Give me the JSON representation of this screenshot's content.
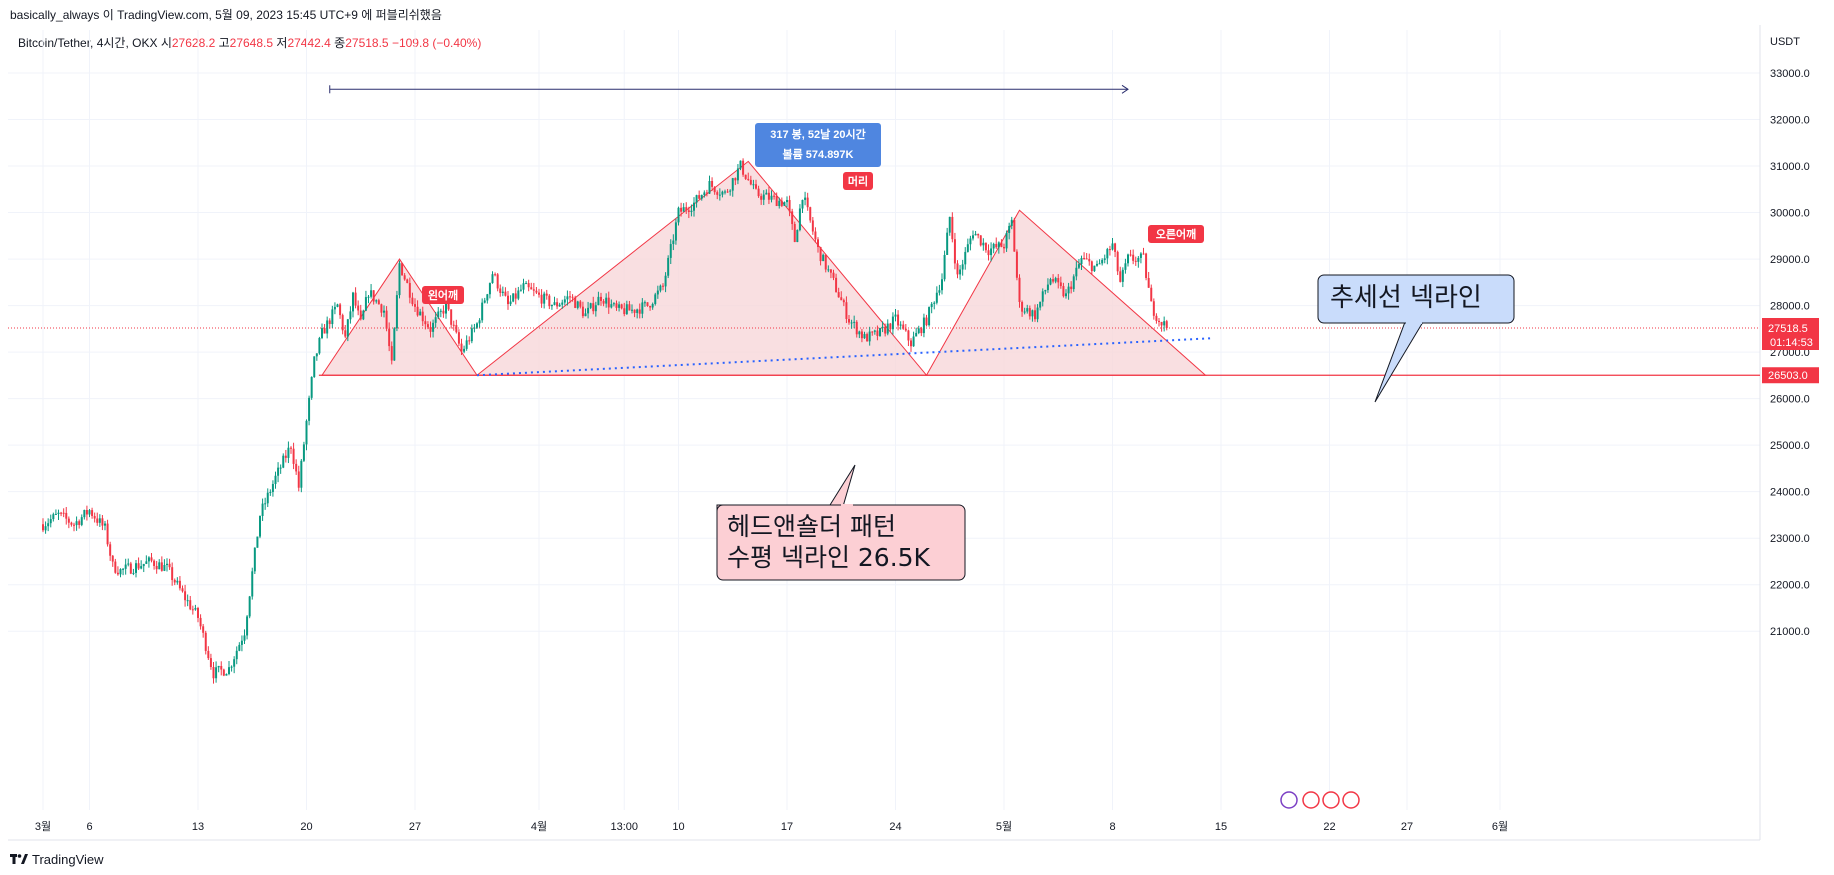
{
  "header": {
    "publish_line": "basically_always 이 TradingView.com, 5월 09, 2023 15:45 UTC+9 에 퍼블리쉬했음"
  },
  "legend": {
    "symbol": "Bitcoin/Tether, 4시간, OKX",
    "open_label": "시",
    "open_value": "27628.2",
    "high_label": "고",
    "high_value": "27648.5",
    "low_label": "저",
    "low_value": "27442.4",
    "close_label": "종",
    "close_value": "27518.5",
    "change": "−109.8 (−0.40%)"
  },
  "footer": {
    "brand": "TradingView"
  },
  "colors": {
    "up": "#089981",
    "down": "#f23645",
    "pattern_fill": "#f8d7da",
    "pattern_line": "#f23645",
    "trendline": "#2962ff",
    "range_line": "#2a2e6e",
    "range_box": "#4f86e0"
  },
  "chart_data": {
    "type": "candlestick",
    "title": "Bitcoin/Tether, 4시간, OKX",
    "currency": "USDT",
    "ylim": [
      20000,
      33600
    ],
    "y_ticks": [
      "33000.0",
      "32000.0",
      "31000.0",
      "30000.0",
      "29000.0",
      "28000.0",
      "27000.0",
      "26000.0",
      "25000.0",
      "24000.0",
      "23000.0",
      "22000.0",
      "21000.0"
    ],
    "y_tick_values": [
      33000,
      32000,
      31000,
      30000,
      29000,
      28000,
      27000,
      26000,
      25000,
      24000,
      23000,
      22000,
      21000
    ],
    "x_ticks": [
      "3월",
      "6",
      "13",
      "20",
      "27",
      "4월",
      "13:00",
      "10",
      "17",
      "24",
      "5월",
      "8",
      "15",
      "22",
      "27",
      "6월"
    ],
    "x_tick_days": [
      0,
      3,
      10,
      17,
      24,
      32,
      37.5,
      41,
      48,
      55,
      62,
      69,
      76,
      83,
      88,
      94
    ],
    "x_axis_note": "x values are days from 1 March 2023",
    "price_path": [
      [
        0,
        23300
      ],
      [
        1,
        23500
      ],
      [
        2,
        23300
      ],
      [
        3,
        23600
      ],
      [
        4,
        23200
      ],
      [
        4.5,
        22400
      ],
      [
        5,
        22300
      ],
      [
        6,
        22400
      ],
      [
        7,
        22500
      ],
      [
        8,
        22350
      ],
      [
        9,
        21800
      ],
      [
        10,
        21300
      ],
      [
        11,
        20100
      ],
      [
        12,
        20200
      ],
      [
        13,
        21000
      ],
      [
        14,
        23500
      ],
      [
        15,
        24300
      ],
      [
        16,
        25000
      ],
      [
        16.5,
        24100
      ],
      [
        17,
        25500
      ],
      [
        17.5,
        26800
      ],
      [
        18,
        27400
      ],
      [
        19,
        28000
      ],
      [
        19.5,
        27300
      ],
      [
        20,
        28200
      ],
      [
        20.5,
        27600
      ],
      [
        21,
        28300
      ],
      [
        22,
        27900
      ],
      [
        22.5,
        26700
      ],
      [
        23,
        28900
      ],
      [
        24,
        28000
      ],
      [
        25,
        27500
      ],
      [
        26,
        28000
      ],
      [
        27,
        27000
      ],
      [
        28,
        27600
      ],
      [
        29,
        28700
      ],
      [
        30,
        28000
      ],
      [
        31,
        28400
      ],
      [
        32,
        28200
      ],
      [
        33,
        28000
      ],
      [
        34,
        28200
      ],
      [
        35,
        27800
      ],
      [
        36,
        28200
      ],
      [
        37,
        27900
      ],
      [
        38,
        27900
      ],
      [
        39,
        28000
      ],
      [
        40,
        28400
      ],
      [
        41,
        30000
      ],
      [
        42,
        30200
      ],
      [
        43,
        30600
      ],
      [
        44,
        30400
      ],
      [
        45,
        31000
      ],
      [
        46,
        30400
      ],
      [
        47,
        30300
      ],
      [
        48,
        30200
      ],
      [
        48.5,
        29400
      ],
      [
        49,
        30400
      ],
      [
        50,
        29200
      ],
      [
        51,
        28500
      ],
      [
        52,
        27700
      ],
      [
        53,
        27300
      ],
      [
        54,
        27400
      ],
      [
        55,
        27700
      ],
      [
        56,
        27200
      ],
      [
        57,
        27700
      ],
      [
        58,
        28600
      ],
      [
        58.5,
        29900
      ],
      [
        59,
        28600
      ],
      [
        60,
        29600
      ],
      [
        61,
        29200
      ],
      [
        62,
        29300
      ],
      [
        62.5,
        29800
      ],
      [
        63,
        28000
      ],
      [
        64,
        27800
      ],
      [
        65,
        28600
      ],
      [
        66,
        28200
      ],
      [
        67,
        29000
      ],
      [
        68,
        28800
      ],
      [
        69,
        29300
      ],
      [
        69.5,
        28500
      ],
      [
        70,
        29000
      ],
      [
        71,
        29000
      ],
      [
        71.5,
        28000
      ],
      [
        72,
        27700
      ],
      [
        72.6,
        27500
      ]
    ],
    "last_price": "27518.5",
    "countdown": "01:14:53",
    "neckline_price": "26503.0",
    "neckline_value": 26503,
    "range_measure": {
      "label_line1": "317 봉, 52날 20시간",
      "label_line2": "볼륨 574.897K"
    },
    "pattern_labels": {
      "left_shoulder": "왼어깨",
      "head": "머리",
      "right_shoulder": "오른어깨"
    },
    "callouts": {
      "horizontal_neckline_line1": "헤드앤숄더 패턴",
      "horizontal_neckline_line2": "수평 넥라인 26.5K",
      "trend_neckline": "추세선 넥라인"
    },
    "pattern_triangles": [
      [
        [
          18,
          26503
        ],
        [
          23,
          29000
        ],
        [
          28,
          26503
        ]
      ],
      [
        [
          28,
          26503
        ],
        [
          45.5,
          31100
        ],
        [
          57,
          26503
        ]
      ],
      [
        [
          57,
          26503
        ],
        [
          63,
          30050
        ],
        [
          75,
          26503
        ]
      ]
    ],
    "trendline": [
      [
        28,
        26503
      ],
      [
        75.5,
        27300
      ]
    ],
    "range_days": [
      18.5,
      70
    ],
    "range_price": 32650
  }
}
